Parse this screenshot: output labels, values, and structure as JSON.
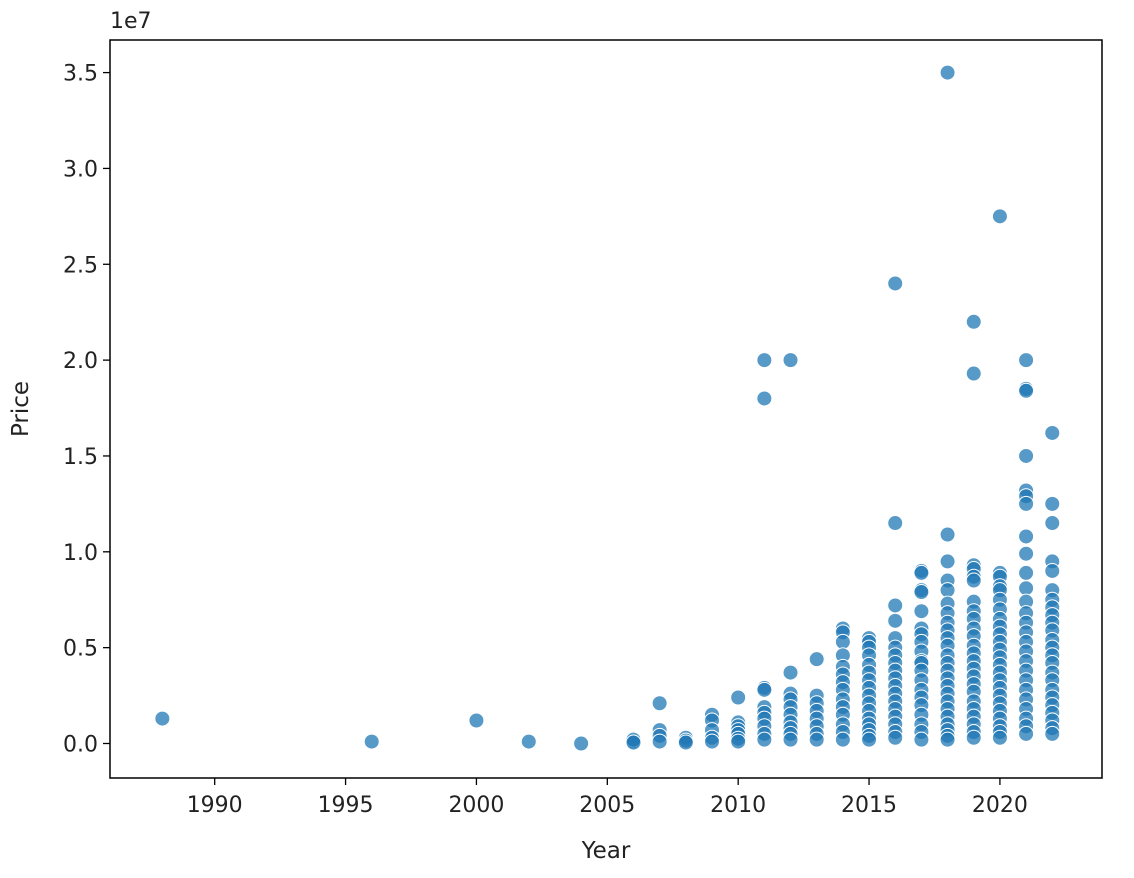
{
  "chart_data": {
    "type": "scatter",
    "title": "",
    "xlabel": "Year",
    "ylabel": "Price",
    "y_offset_label": "1e7",
    "xlim": [
      1986,
      2023.9
    ],
    "ylim": [
      -1800000,
      36700000
    ],
    "x_ticks": [
      1990,
      1995,
      2000,
      2005,
      2010,
      2015,
      2020
    ],
    "x_tick_labels": [
      "1990",
      "1995",
      "2000",
      "2005",
      "2010",
      "2015",
      "2020"
    ],
    "y_ticks": [
      0,
      5000000,
      10000000,
      15000000,
      20000000,
      25000000,
      30000000,
      35000000
    ],
    "y_tick_labels": [
      "0.0",
      "0.5",
      "1.0",
      "1.5",
      "2.0",
      "2.5",
      "3.0",
      "3.5"
    ],
    "grid": false,
    "legend": "none",
    "marker_color": "#1f77b4",
    "series": [
      {
        "x": [
          1988,
          1996,
          2000,
          2002,
          2004,
          2006,
          2006,
          2006,
          2007,
          2007,
          2007,
          2007,
          2008,
          2008,
          2008,
          2009,
          2009,
          2009,
          2009,
          2009,
          2010,
          2010,
          2010,
          2010,
          2010,
          2010,
          2010,
          2011,
          2011,
          2011,
          2011,
          2011,
          2011,
          2011,
          2011,
          2011,
          2011,
          2012,
          2012,
          2012,
          2012,
          2012,
          2012,
          2012,
          2012,
          2012,
          2012,
          2013,
          2013,
          2013,
          2013,
          2013,
          2013,
          2013,
          2013,
          2014,
          2014,
          2014,
          2014,
          2014,
          2014,
          2014,
          2014,
          2014,
          2014,
          2014,
          2014,
          2014,
          2014,
          2015,
          2015,
          2015,
          2015,
          2015,
          2015,
          2015,
          2015,
          2015,
          2015,
          2015,
          2015,
          2015,
          2015,
          2015,
          2015,
          2016,
          2016,
          2016,
          2016,
          2016,
          2016,
          2016,
          2016,
          2016,
          2016,
          2016,
          2016,
          2016,
          2016,
          2016,
          2016,
          2016,
          2016,
          2017,
          2017,
          2017,
          2017,
          2017,
          2017,
          2017,
          2017,
          2017,
          2017,
          2017,
          2017,
          2017,
          2017,
          2017,
          2017,
          2017,
          2017,
          2017,
          2017,
          2018,
          2018,
          2018,
          2018,
          2018,
          2018,
          2018,
          2018,
          2018,
          2018,
          2018,
          2018,
          2018,
          2018,
          2018,
          2018,
          2018,
          2018,
          2018,
          2018,
          2018,
          2018,
          2018,
          2018,
          2019,
          2019,
          2019,
          2019,
          2019,
          2019,
          2019,
          2019,
          2019,
          2019,
          2019,
          2019,
          2019,
          2019,
          2019,
          2019,
          2019,
          2019,
          2019,
          2019,
          2019,
          2019,
          2019,
          2019,
          2020,
          2020,
          2020,
          2020,
          2020,
          2020,
          2020,
          2020,
          2020,
          2020,
          2020,
          2020,
          2020,
          2020,
          2020,
          2020,
          2020,
          2020,
          2020,
          2020,
          2020,
          2020,
          2020,
          2020,
          2021,
          2021,
          2021,
          2021,
          2021,
          2021,
          2021,
          2021,
          2021,
          2021,
          2021,
          2021,
          2021,
          2021,
          2021,
          2021,
          2021,
          2021,
          2021,
          2021,
          2021,
          2021,
          2021,
          2021,
          2021,
          2021,
          2022,
          2022,
          2022,
          2022,
          2022,
          2022,
          2022,
          2022,
          2022,
          2022,
          2022,
          2022,
          2022,
          2022,
          2022,
          2022,
          2022,
          2022,
          2022,
          2022,
          2022,
          2022,
          2022,
          2022
        ],
        "y": [
          1300000,
          100000,
          1200000,
          100000,
          0,
          100000,
          200000,
          50000,
          2100000,
          700000,
          400000,
          100000,
          300000,
          150000,
          50000,
          1500000,
          1200000,
          700000,
          300000,
          100000,
          2400000,
          1100000,
          900000,
          700000,
          500000,
          250000,
          100000,
          20000000,
          18000000,
          2900000,
          2800000,
          1900000,
          1600000,
          1300000,
          900000,
          500000,
          200000,
          20000000,
          3700000,
          2600000,
          2300000,
          1900000,
          1500000,
          1100000,
          800000,
          500000,
          200000,
          4400000,
          2500000,
          2100000,
          1700000,
          1300000,
          900000,
          500000,
          200000,
          6000000,
          5800000,
          5300000,
          4600000,
          4000000,
          3600000,
          3200000,
          2800000,
          2300000,
          1900000,
          1500000,
          1000000,
          600000,
          200000,
          5500000,
          5300000,
          5000000,
          4600000,
          4100000,
          3700000,
          3300000,
          2900000,
          2500000,
          2100000,
          1700000,
          1300000,
          1000000,
          700000,
          400000,
          200000,
          24000000,
          11500000,
          7200000,
          6400000,
          5500000,
          5000000,
          4600000,
          4200000,
          3800000,
          3400000,
          3000000,
          2600000,
          2200000,
          1800000,
          1400000,
          1000000,
          600000,
          300000,
          9000000,
          8900000,
          8000000,
          7900000,
          6900000,
          6000000,
          5700000,
          5300000,
          4800000,
          4300000,
          4200000,
          3800000,
          3300000,
          2800000,
          2400000,
          2000000,
          1500000,
          1000000,
          600000,
          200000,
          35000000,
          10900000,
          9500000,
          8500000,
          8000000,
          7300000,
          6800000,
          6300000,
          5900000,
          5500000,
          5100000,
          4600000,
          4200000,
          3800000,
          3400000,
          3000000,
          2600000,
          2200000,
          1800000,
          1400000,
          1000000,
          700000,
          400000,
          200000,
          22000000,
          19300000,
          9300000,
          9100000,
          8700000,
          8500000,
          7400000,
          6900000,
          6500000,
          6000000,
          5600000,
          5100000,
          4700000,
          4300000,
          3900000,
          3500000,
          3100000,
          2700000,
          2200000,
          1800000,
          1400000,
          1000000,
          600000,
          300000,
          27500000,
          8900000,
          8700000,
          8200000,
          8000000,
          7500000,
          7000000,
          6500000,
          6100000,
          5700000,
          5300000,
          4900000,
          4500000,
          4100000,
          3700000,
          3300000,
          2900000,
          2500000,
          2100000,
          1700000,
          1300000,
          900000,
          600000,
          300000,
          20000000,
          18500000,
          18400000,
          15000000,
          13200000,
          12900000,
          12500000,
          10800000,
          9900000,
          8900000,
          8100000,
          7400000,
          6800000,
          6300000,
          5800000,
          5300000,
          4800000,
          4300000,
          3800000,
          3300000,
          2800000,
          2300000,
          1800000,
          1300000,
          900000,
          500000,
          16200000,
          12500000,
          11500000,
          9500000,
          9000000,
          8000000,
          7500000,
          7100000,
          6700000,
          6300000,
          5900000,
          5400000,
          5000000,
          4600000,
          4200000,
          3700000,
          3300000,
          2800000,
          2400000,
          2000000,
          1600000,
          1200000,
          800000,
          500000
        ]
      }
    ]
  }
}
